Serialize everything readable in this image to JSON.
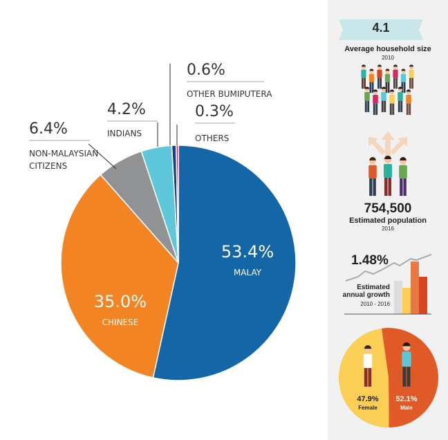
{
  "chart_data": {
    "type": "pie",
    "slices": [
      {
        "label": "MALAY",
        "value": 53.4,
        "value_label": "53.4%",
        "color": "#1566a6"
      },
      {
        "label": "CHINESE",
        "value": 35.0,
        "value_label": "35.0%",
        "color": "#f28424"
      },
      {
        "label_lines": [
          "NON-MALAYSIAN",
          "CITIZENS"
        ],
        "value": 6.4,
        "value_label": "6.4%",
        "color": "#919294"
      },
      {
        "label": "INDIANS",
        "value": 4.2,
        "value_label": "4.2%",
        "color": "#5ec8da"
      },
      {
        "label": "OTHER BUMIPUTERA",
        "value": 0.6,
        "value_label": "0.6%",
        "color": "#14418a"
      },
      {
        "label": "OTHERS",
        "value": 0.3,
        "value_label": "0.3%",
        "color": "#e0245e"
      }
    ]
  },
  "sidebar": {
    "household": {
      "value": "4.1",
      "label": "Average household size",
      "year": "2010"
    },
    "population": {
      "value": "754,500",
      "label": "Estimated population",
      "year": "2016"
    },
    "growth": {
      "value": "1.48%",
      "label_lines": [
        "Estimated",
        "annual growth"
      ],
      "years": "2010 - 2016"
    },
    "gender": {
      "male": {
        "value": 52.1,
        "value_label": "52.1%",
        "label": "Male",
        "color": "#e05a28"
      },
      "female": {
        "value": 47.9,
        "value_label": "47.9%",
        "label": "Female",
        "color": "#fbcf56"
      }
    }
  }
}
